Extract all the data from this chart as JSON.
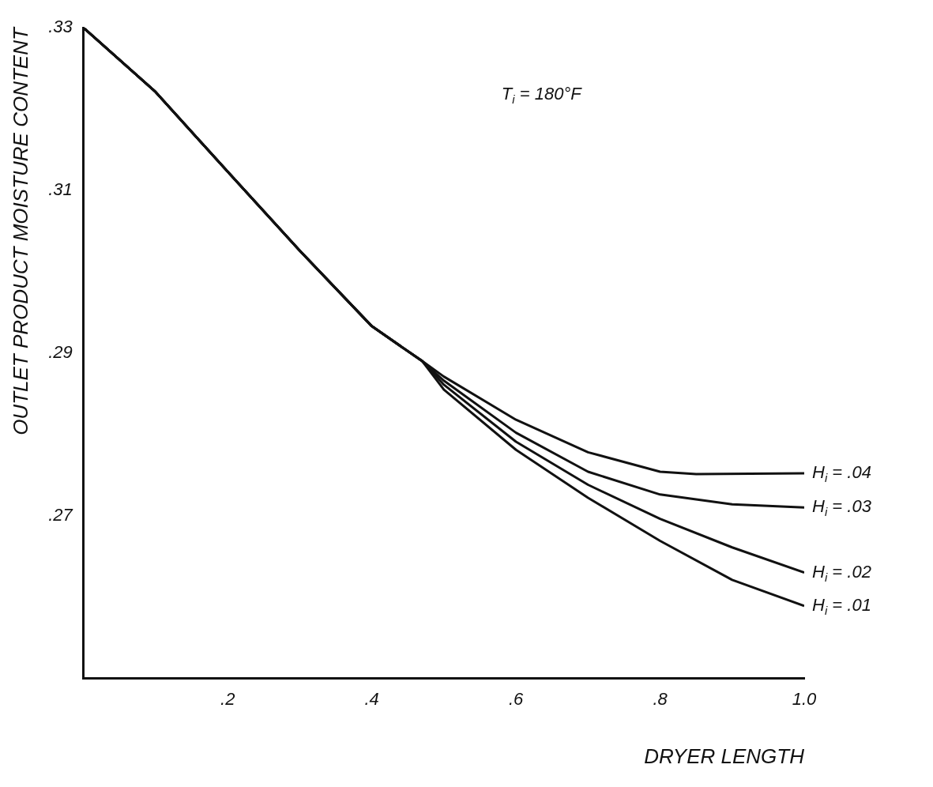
{
  "chart_data": {
    "type": "line",
    "xlabel": "DRYER LENGTH",
    "ylabel": "OUTLET PRODUCT MOISTURE CONTENT",
    "annotations": [
      "T$_{i}$ = 180°F"
    ],
    "xlim": [
      0,
      1.0
    ],
    "ylim": [
      0.25,
      0.33
    ],
    "xticks": [
      {
        "value": 0.2,
        "label": ".2"
      },
      {
        "value": 0.4,
        "label": ".4"
      },
      {
        "value": 0.6,
        "label": ".6"
      },
      {
        "value": 0.8,
        "label": ".8"
      },
      {
        "value": 1.0,
        "label": "1.0"
      }
    ],
    "yticks": [
      {
        "value": 0.27,
        "label": ".27"
      },
      {
        "value": 0.29,
        "label": ".29"
      },
      {
        "value": 0.31,
        "label": ".31"
      },
      {
        "value": 0.33,
        "label": ".33"
      }
    ],
    "grid": false,
    "legend": false,
    "marker": "none",
    "line_style": "solid",
    "series": [
      {
        "name": "H$_{i}$ = .04",
        "color": "#111111",
        "x": [
          0,
          0.1,
          0.2,
          0.3,
          0.4,
          0.47,
          0.5,
          0.6,
          0.7,
          0.8,
          0.85,
          1.0
        ],
        "values": [
          0.33,
          0.3221,
          0.3123,
          0.3026,
          0.2933,
          0.289,
          0.2871,
          0.2818,
          0.2778,
          0.2754,
          0.2751,
          0.2752
        ]
      },
      {
        "name": "H$_{i}$ = .03",
        "color": "#111111",
        "x": [
          0,
          0.1,
          0.2,
          0.3,
          0.4,
          0.47,
          0.5,
          0.6,
          0.7,
          0.8,
          0.9,
          1.0
        ],
        "values": [
          0.33,
          0.3221,
          0.3123,
          0.3026,
          0.2933,
          0.289,
          0.2866,
          0.2802,
          0.2754,
          0.2726,
          0.2714,
          0.271
        ]
      },
      {
        "name": "H$_{i}$ = .02",
        "color": "#111111",
        "x": [
          0,
          0.1,
          0.2,
          0.3,
          0.4,
          0.47,
          0.5,
          0.6,
          0.7,
          0.8,
          0.9,
          1.0
        ],
        "values": [
          0.33,
          0.3221,
          0.3123,
          0.3026,
          0.2933,
          0.289,
          0.2861,
          0.2791,
          0.2738,
          0.2696,
          0.2661,
          0.263
        ]
      },
      {
        "name": "H$_{i}$ = .01",
        "color": "#111111",
        "x": [
          0,
          0.1,
          0.2,
          0.3,
          0.4,
          0.47,
          0.5,
          0.6,
          0.7,
          0.8,
          0.9,
          1.0
        ],
        "values": [
          0.33,
          0.3221,
          0.3123,
          0.3026,
          0.2933,
          0.289,
          0.2855,
          0.2781,
          0.2722,
          0.2669,
          0.2621,
          0.2589
        ]
      }
    ]
  }
}
